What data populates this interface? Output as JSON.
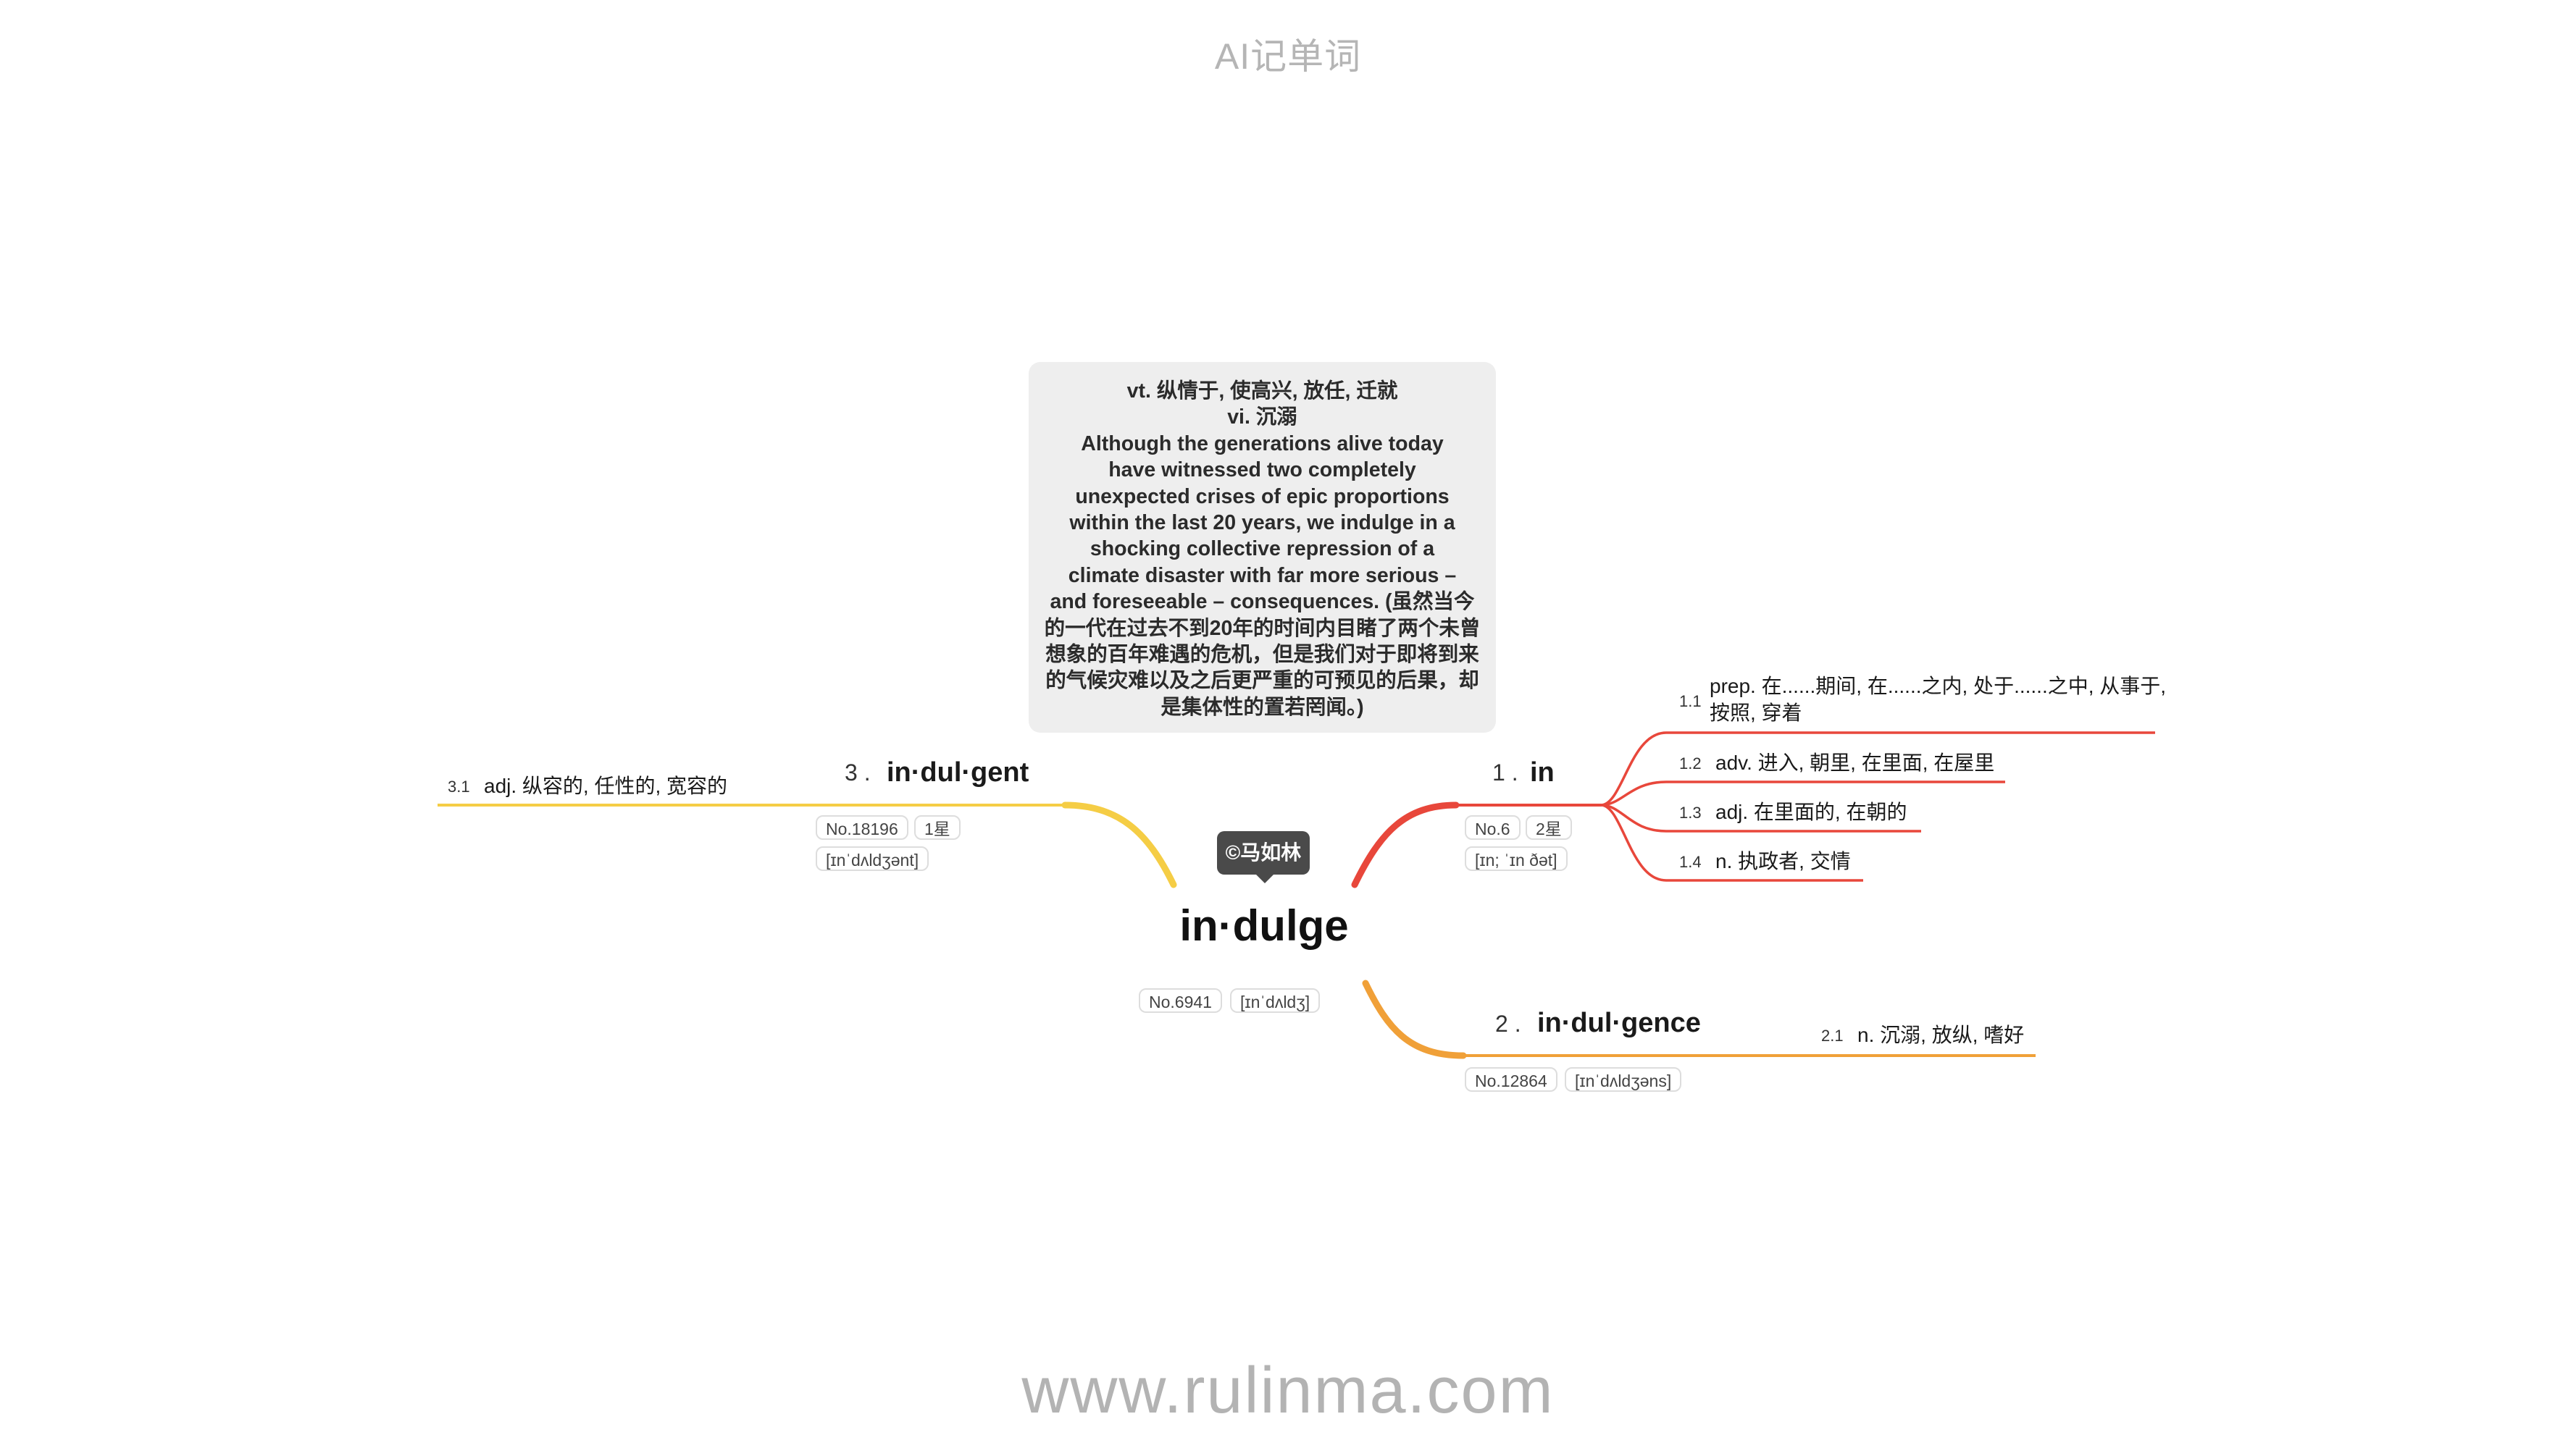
{
  "header": {
    "title": "AI记单词"
  },
  "footer": {
    "url": "www.rulinma.com"
  },
  "root": {
    "word": "in·dulge",
    "callout": "©马如林",
    "tags": [
      "No.6941",
      "[ɪnˈdʌldʒ]"
    ]
  },
  "note": {
    "lines": [
      "vt. 纵情于, 使高兴, 放任, 迁就",
      "vi. 沉溺",
      "Although the generations alive today",
      "have witnessed two completely",
      "unexpected crises of epic proportions",
      "within the last 20 years, we indulge in a",
      "shocking collective repression of a",
      "climate disaster with far more serious –",
      "and foreseeable – consequences. (虽然当今",
      "的一代在过去不到20年的时间内目睹了两个未曾",
      "想象的百年难遇的危机，但是我们对于即将到来",
      "的气候灾难以及之后更严重的可预见的后果，却",
      "是集体性的置若罔闻。)"
    ]
  },
  "branches": [
    {
      "number": "1 .",
      "word": "in",
      "color": "#e8473b",
      "tags": [
        "No.6",
        "2星",
        "[ɪn; ˈɪn ðət]"
      ],
      "definitions": [
        {
          "number": "1.1",
          "text": "prep. 在......期间, 在......之内, 处于......之中, 从事于,",
          "text2": "按照, 穿着"
        },
        {
          "number": "1.2",
          "text": "adv. 进入, 朝里, 在里面, 在屋里"
        },
        {
          "number": "1.3",
          "text": "adj. 在里面的, 在朝的"
        },
        {
          "number": "1.4",
          "text": "n. 执政者, 交情"
        }
      ]
    },
    {
      "number": "2 .",
      "word": "in·dul·gence",
      "color": "#f0a038",
      "tags": [
        "No.12864",
        "[ɪnˈdʌldʒəns]"
      ],
      "definitions": [
        {
          "number": "2.1",
          "text": "n. 沉溺, 放纵, 嗜好"
        }
      ]
    },
    {
      "number": "3 .",
      "word": "in·dul·gent",
      "color": "#f5cd45",
      "tags": [
        "No.18196",
        "1星",
        "[ɪnˈdʌldʒənt]"
      ],
      "definitions": [
        {
          "number": "3.1",
          "text": "adj. 纵容的, 任性的, 宽容的"
        }
      ]
    }
  ]
}
